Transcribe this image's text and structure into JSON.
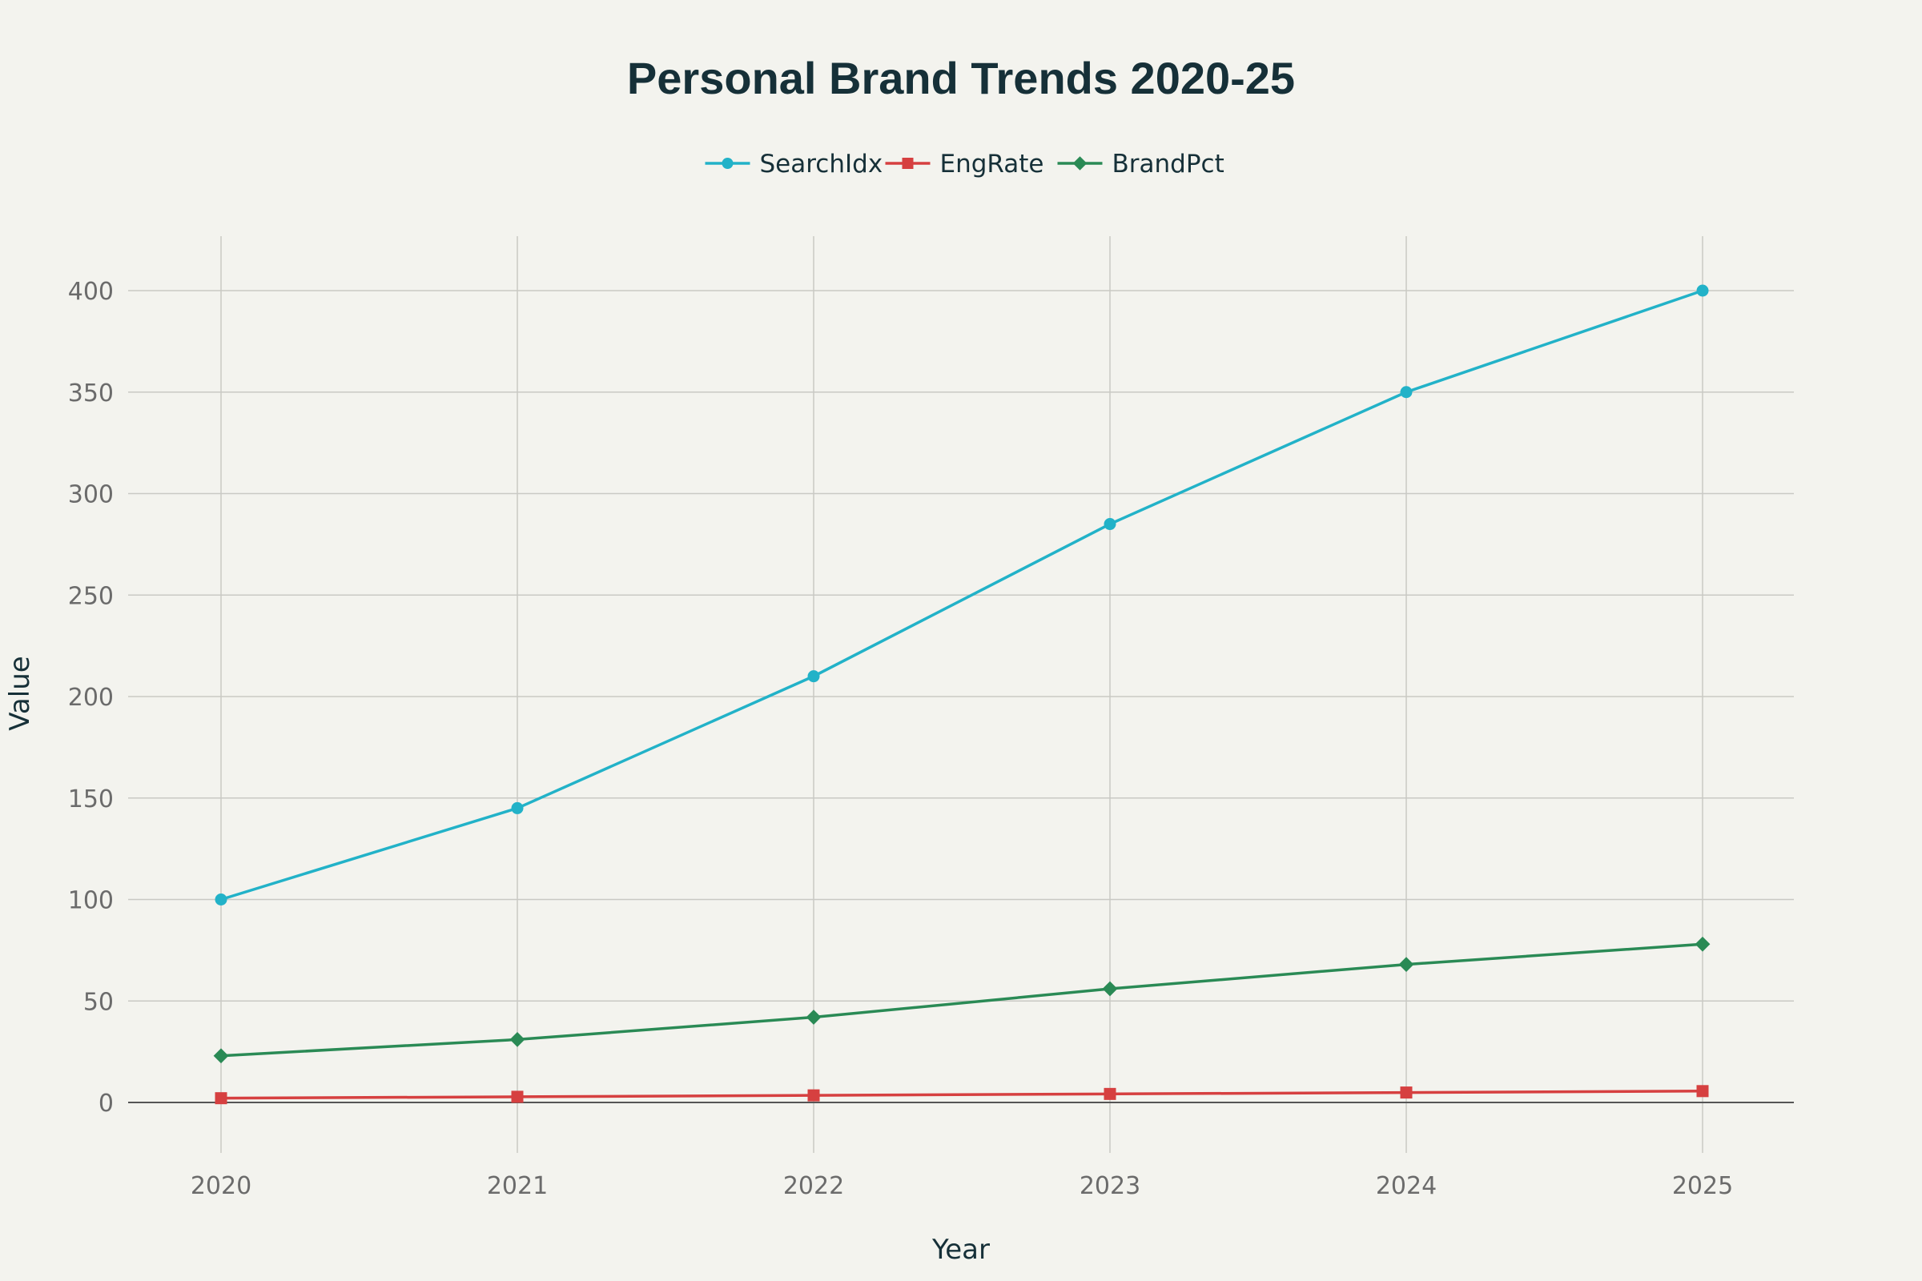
{
  "chart_data": {
    "type": "line",
    "title": "Personal Brand Trends 2020-25",
    "xlabel": "Year",
    "ylabel": "Value",
    "x": [
      "2020",
      "2021",
      "2022",
      "2023",
      "2024",
      "2025"
    ],
    "yticks": [
      0,
      50,
      100,
      150,
      200,
      250,
      300,
      350,
      400
    ],
    "ylim": [
      -30,
      425
    ],
    "grid": true,
    "legend_position": "top-center",
    "series": [
      {
        "name": "SearchIdx",
        "color": "#22b2c8",
        "marker": "circle",
        "values": [
          100,
          145,
          210,
          285,
          350,
          400
        ]
      },
      {
        "name": "EngRate",
        "color": "#d64040",
        "marker": "square",
        "values": [
          2.1,
          2.8,
          3.5,
          4.2,
          4.9,
          5.6
        ]
      },
      {
        "name": "BrandPct",
        "color": "#2a8a55",
        "marker": "diamond",
        "values": [
          23,
          31,
          42,
          56,
          68,
          78
        ]
      }
    ]
  }
}
